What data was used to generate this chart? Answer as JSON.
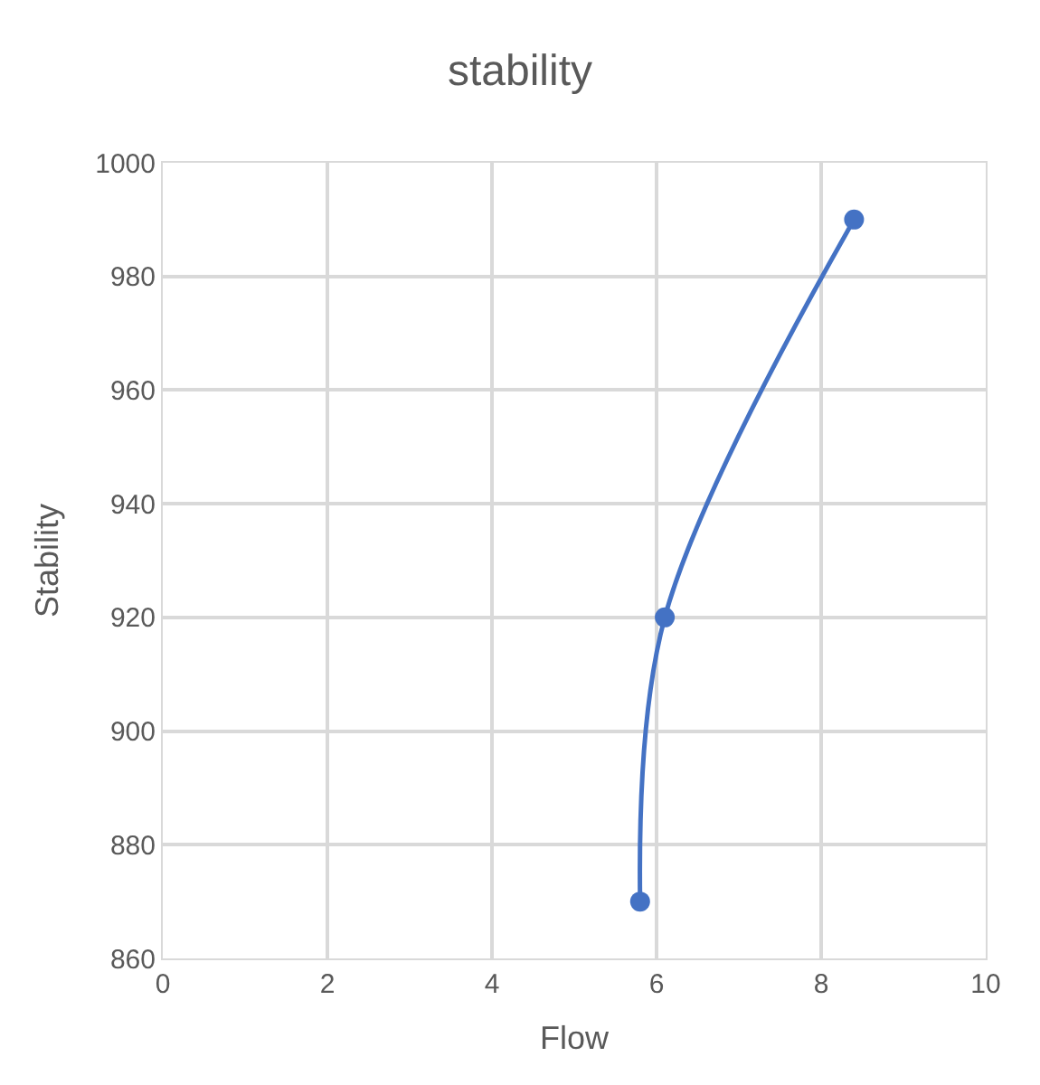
{
  "chart_data": {
    "type": "line",
    "title": "stability",
    "xlabel": "Flow",
    "ylabel": "Stability",
    "series": [
      {
        "color": "#4472c4",
        "x": [
          5.8,
          6.1,
          8.4
        ],
        "values": [
          870,
          920,
          990
        ]
      }
    ],
    "xlim": [
      0,
      10
    ],
    "xticks": [
      0,
      2,
      4,
      6,
      8,
      10
    ],
    "ylim": [
      860,
      1000
    ],
    "yticks": [
      860,
      880,
      900,
      920,
      940,
      960,
      980,
      1000
    ],
    "grid": true,
    "marker": "circle",
    "line_style": "solid"
  }
}
